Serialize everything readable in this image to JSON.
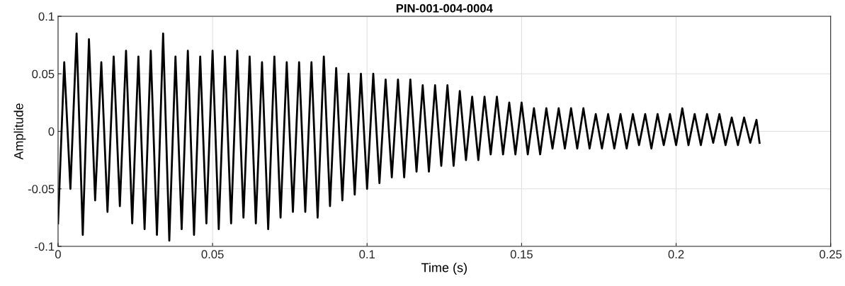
{
  "chart_data": {
    "type": "line",
    "title": "PIN-001-004-0004",
    "xlabel": "Time (s)",
    "ylabel": "Amplitude",
    "x": [
      0,
      0.002,
      0.004,
      0.006,
      0.008,
      0.01,
      0.012,
      0.014,
      0.016,
      0.018,
      0.02,
      0.022,
      0.024,
      0.026,
      0.028,
      0.03,
      0.032,
      0.034,
      0.036,
      0.038,
      0.04,
      0.042,
      0.044,
      0.046,
      0.048,
      0.05,
      0.052,
      0.054,
      0.056,
      0.058,
      0.06,
      0.062,
      0.064,
      0.066,
      0.068,
      0.07,
      0.072,
      0.074,
      0.076,
      0.078,
      0.08,
      0.082,
      0.084,
      0.086,
      0.088,
      0.09,
      0.092,
      0.094,
      0.096,
      0.098,
      0.1,
      0.102,
      0.104,
      0.106,
      0.108,
      0.11,
      0.112,
      0.114,
      0.116,
      0.118,
      0.12,
      0.122,
      0.124,
      0.126,
      0.128,
      0.13,
      0.132,
      0.134,
      0.136,
      0.138,
      0.14,
      0.142,
      0.144,
      0.146,
      0.148,
      0.15,
      0.152,
      0.154,
      0.156,
      0.158,
      0.16,
      0.162,
      0.164,
      0.166,
      0.168,
      0.17,
      0.172,
      0.174,
      0.176,
      0.178,
      0.18,
      0.182,
      0.184,
      0.186,
      0.188,
      0.19,
      0.192,
      0.194,
      0.196,
      0.198,
      0.2,
      0.202,
      0.204,
      0.206,
      0.208,
      0.21,
      0.212,
      0.214,
      0.216,
      0.218,
      0.22,
      0.222,
      0.224,
      0.226,
      0.227
    ],
    "series": [
      {
        "color": "#000000",
        "values": [
          -0.08,
          0.06,
          -0.05,
          0.085,
          -0.09,
          0.08,
          -0.06,
          0.06,
          -0.07,
          0.065,
          -0.065,
          0.07,
          -0.08,
          0.065,
          -0.085,
          0.07,
          -0.09,
          0.085,
          -0.095,
          0.065,
          -0.085,
          0.07,
          -0.09,
          0.065,
          -0.08,
          0.07,
          -0.085,
          0.065,
          -0.08,
          0.07,
          -0.075,
          0.065,
          -0.08,
          0.06,
          -0.085,
          0.065,
          -0.075,
          0.06,
          -0.07,
          0.06,
          -0.07,
          0.06,
          -0.075,
          0.065,
          -0.065,
          0.055,
          -0.06,
          0.05,
          -0.055,
          0.05,
          -0.05,
          0.05,
          -0.045,
          0.045,
          -0.04,
          0.045,
          -0.04,
          0.045,
          -0.035,
          0.04,
          -0.035,
          0.04,
          -0.03,
          0.04,
          -0.03,
          0.035,
          -0.025,
          0.03,
          -0.025,
          0.03,
          -0.02,
          0.03,
          -0.02,
          0.025,
          -0.02,
          0.025,
          -0.02,
          0.02,
          -0.02,
          0.02,
          -0.015,
          0.02,
          -0.015,
          0.02,
          -0.015,
          0.02,
          -0.015,
          0.015,
          -0.015,
          0.015,
          -0.015,
          0.015,
          -0.015,
          0.015,
          -0.012,
          0.015,
          -0.015,
          0.015,
          -0.012,
          0.015,
          -0.012,
          0.02,
          -0.012,
          0.015,
          -0.012,
          0.015,
          -0.01,
          0.015,
          -0.012,
          0.012,
          -0.012,
          0.012,
          -0.01,
          0.01,
          -0.01
        ]
      }
    ],
    "xlim": [
      0,
      0.25
    ],
    "ylim": [
      -0.1,
      0.1
    ],
    "xticks": [
      0,
      0.05,
      0.1,
      0.15,
      0.2,
      0.25
    ],
    "yticks": [
      -0.1,
      -0.05,
      0,
      0.05,
      0.1
    ],
    "grid": true,
    "legend": false,
    "marker": "none",
    "line_style": "solid"
  }
}
